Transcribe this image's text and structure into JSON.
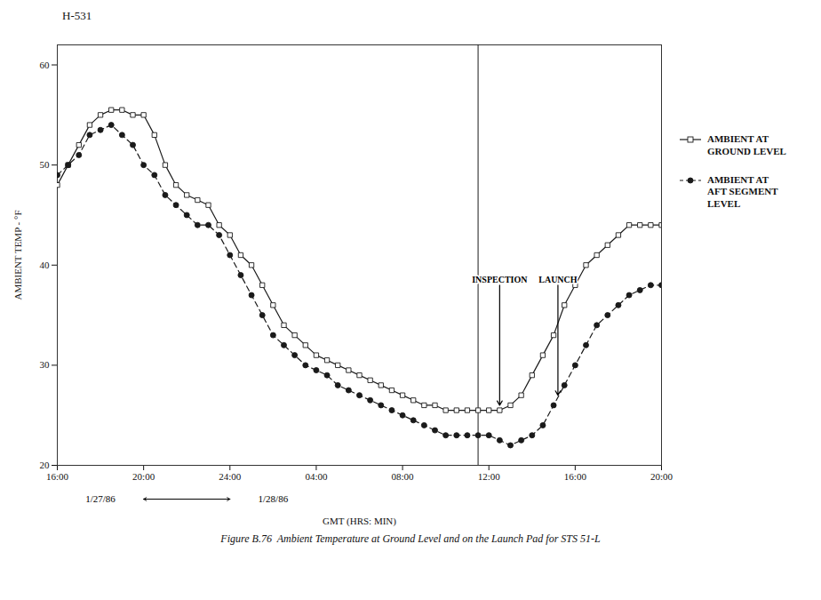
{
  "chart_data": {
    "type": "line",
    "title": "H-531",
    "xlabel": "GMT (HRS: MIN)",
    "ylabel": "AMBIENT TEMP - °F",
    "caption": "Figure B.76  Ambient Temperature at Ground Level and on the Launch Pad for STS 51-L",
    "x": [
      0,
      0.5,
      1,
      1.5,
      2,
      2.5,
      3,
      3.5,
      4,
      4.5,
      5,
      5.5,
      6,
      6.5,
      7,
      7.5,
      8,
      8.5,
      9,
      9.5,
      10,
      10.5,
      11,
      11.5,
      12,
      12.5,
      13,
      13.5,
      14,
      14.5,
      15,
      15.5,
      16,
      16.5,
      17,
      17.5,
      18,
      18.5,
      19,
      19.5,
      20,
      20.5,
      21,
      21.5,
      22,
      22.5,
      23,
      23.5,
      24,
      24.5,
      25,
      25.5,
      26,
      26.5,
      27,
      27.5,
      28
    ],
    "series": [
      {
        "name": "AMBIENT AT\nGROUND LEVEL",
        "color": "#1a1a1a",
        "marker": "open_square",
        "line_style": "solid",
        "values": [
          48,
          50,
          52,
          54,
          55,
          55.5,
          55.5,
          55,
          55,
          53,
          50,
          48,
          47,
          46.5,
          46,
          44,
          43,
          41,
          40,
          38,
          36,
          34,
          33,
          32,
          31,
          30.5,
          30,
          29.5,
          29,
          28.5,
          28,
          27.5,
          27,
          26.5,
          26,
          26,
          25.5,
          25.5,
          25.5,
          25.5,
          25.5,
          25.5,
          26,
          27,
          29,
          31,
          33,
          36,
          38,
          40,
          41,
          42,
          43,
          44,
          44,
          44,
          44
        ]
      },
      {
        "name": "AMBIENT AT\nAFT SEGMENT\nLEVEL",
        "color": "#1a1a1a",
        "marker": "circle",
        "line_style": "dashed",
        "values": [
          49,
          50,
          51,
          53,
          53.5,
          54,
          53,
          52,
          50,
          49,
          47,
          46,
          45,
          44,
          44,
          43,
          41,
          39,
          37,
          35,
          33,
          32,
          31,
          30,
          29.5,
          29,
          28,
          27.5,
          27,
          26.5,
          26,
          25.5,
          25,
          24.5,
          24,
          23.5,
          23,
          23,
          23,
          23,
          23,
          22.5,
          22,
          22.5,
          23,
          24,
          26,
          28,
          30,
          32,
          34,
          35,
          36,
          37,
          37.5,
          38,
          38
        ]
      }
    ],
    "xlim": [
      0,
      28
    ],
    "xticks": [
      {
        "value": 0,
        "label": "16:00"
      },
      {
        "value": 4,
        "label": "20:00"
      },
      {
        "value": 8,
        "label": "24:00"
      },
      {
        "value": 12,
        "label": "04:00"
      },
      {
        "value": 16,
        "label": "08:00"
      },
      {
        "value": 20,
        "label": "12:00"
      },
      {
        "value": 24,
        "label": "16:00"
      },
      {
        "value": 28,
        "label": "20:00"
      }
    ],
    "ylim": [
      20,
      62
    ],
    "yticks": [
      20,
      30,
      40,
      50,
      60
    ],
    "grid": false,
    "legend": "right",
    "vertical_line_x": 19.5,
    "annotations": [
      {
        "text": "INSPECTION",
        "x": 20.5,
        "y": 38,
        "arrow_to_y": 26
      },
      {
        "text": "LAUNCH",
        "x": 23.2,
        "y": 38,
        "arrow_to_y": 27
      }
    ],
    "date_labels": [
      {
        "text": "1/27/86",
        "x": 2
      },
      {
        "text": "1/28/86",
        "x": 10
      }
    ],
    "date_arrow_x": [
      4,
      8
    ]
  }
}
